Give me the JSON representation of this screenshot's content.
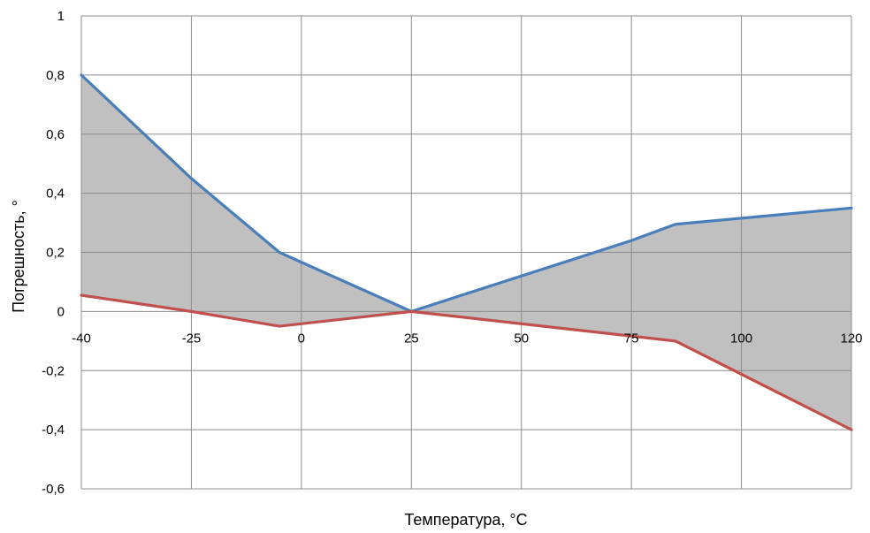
{
  "chart_data": {
    "type": "line",
    "title": "",
    "xlabel": "Температура, °С",
    "ylabel": "Погрешность, °",
    "x_tick_labels": [
      "-40",
      "-25",
      "0",
      "25",
      "50",
      "75",
      "100",
      "120"
    ],
    "y_tick_labels": [
      "1",
      "0,8",
      "0,6",
      "0,4",
      "0,2",
      "0",
      "-0,2",
      "-0,4",
      "-0,6"
    ],
    "ylim": [
      -0.6,
      1
    ],
    "grid": true,
    "fill_between_series": true,
    "series": [
      {
        "color": "#4a7ebb",
        "points": [
          {
            "x": -40,
            "y": 0.8
          },
          {
            "x": -25,
            "y": 0.45
          },
          {
            "x": -5,
            "y": 0.2
          },
          {
            "x": 25,
            "y": 0.0
          },
          {
            "x": 75,
            "y": 0.24
          },
          {
            "x": 85,
            "y": 0.295
          },
          {
            "x": 120,
            "y": 0.35
          }
        ]
      },
      {
        "color": "#c0504d",
        "points": [
          {
            "x": -40,
            "y": 0.055
          },
          {
            "x": -25,
            "y": 0.0
          },
          {
            "x": -5,
            "y": -0.05
          },
          {
            "x": 25,
            "y": 0.0
          },
          {
            "x": 85,
            "y": -0.1
          },
          {
            "x": 120,
            "y": -0.4
          }
        ]
      }
    ],
    "fill_color": "#c0c0c0"
  }
}
